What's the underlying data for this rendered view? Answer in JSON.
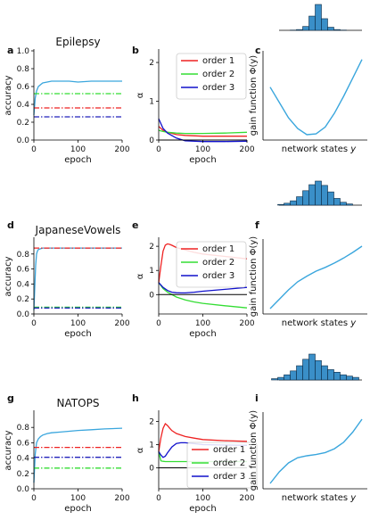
{
  "chart_data": [
    {
      "type": "line",
      "panel": "a",
      "title": "Epilepsy",
      "xlabel": "epoch",
      "ylabel": "accuracy",
      "xlim": [
        0,
        200
      ],
      "ylim": [
        0,
        1.0
      ],
      "xticks": [
        "0",
        "100",
        "200"
      ],
      "yticks": [
        "0.0",
        "0.2",
        "0.4",
        "0.6",
        "0.8",
        "1.0"
      ],
      "series": [
        {
          "color": "#3aa6dd",
          "style": "solid",
          "x": [
            0,
            3,
            6,
            10,
            15,
            20,
            30,
            40,
            60,
            80,
            100,
            130,
            160,
            200
          ],
          "values": [
            0.28,
            0.47,
            0.55,
            0.6,
            0.62,
            0.64,
            0.65,
            0.66,
            0.66,
            0.66,
            0.65,
            0.66,
            0.66,
            0.66
          ]
        },
        {
          "color": "#33dd33",
          "style": "dashdot",
          "x": [
            0,
            200
          ],
          "values": [
            0.52,
            0.52
          ]
        },
        {
          "color": "#ee2222",
          "style": "dashdot",
          "x": [
            0,
            200
          ],
          "values": [
            0.36,
            0.36
          ]
        },
        {
          "color": "#2222bb",
          "style": "dashdot",
          "x": [
            0,
            200
          ],
          "values": [
            0.26,
            0.26
          ]
        }
      ]
    },
    {
      "type": "line",
      "panel": "b",
      "title": "",
      "xlabel": "epoch",
      "ylabel": "α",
      "xlim": [
        0,
        200
      ],
      "ylim": [
        0,
        2.3
      ],
      "xticks": [
        "0",
        "100",
        "200"
      ],
      "yticks": [
        "0",
        "1",
        "2"
      ],
      "legend_position": "top-right",
      "series": [
        {
          "name": "order 1",
          "color": "#ee2222",
          "x": [
            0,
            10,
            20,
            40,
            60,
            100,
            150,
            200
          ],
          "values": [
            0.35,
            0.25,
            0.2,
            0.14,
            0.12,
            0.1,
            0.1,
            0.1
          ]
        },
        {
          "name": "order 2",
          "color": "#33dd33",
          "x": [
            0,
            10,
            20,
            40,
            60,
            100,
            150,
            200
          ],
          "values": [
            0.25,
            0.22,
            0.2,
            0.18,
            0.17,
            0.17,
            0.18,
            0.2
          ]
        },
        {
          "name": "order 3",
          "color": "#1111cc",
          "x": [
            0,
            10,
            20,
            40,
            60,
            100,
            150,
            200
          ],
          "values": [
            0.55,
            0.3,
            0.18,
            0.05,
            -0.02,
            -0.04,
            -0.04,
            -0.03
          ]
        },
        {
          "color": "#000000",
          "x": [
            0,
            200
          ],
          "values": [
            0,
            0
          ]
        }
      ]
    },
    {
      "type": "line",
      "panel": "c",
      "title": "",
      "xlabel": "network states y",
      "ylabel": "gain function Φ(y)",
      "series": [
        {
          "color": "#3aa6dd",
          "x": [
            0,
            0.1,
            0.2,
            0.3,
            0.4,
            0.5,
            0.6,
            0.7,
            0.8,
            0.9,
            1.0
          ],
          "values": [
            0.62,
            0.42,
            0.22,
            0.08,
            0.0,
            0.01,
            0.1,
            0.28,
            0.5,
            0.74,
            0.98
          ]
        }
      ],
      "histogram": [
        0.0,
        0.0,
        0.01,
        0.03,
        0.15,
        0.55,
        1.0,
        0.45,
        0.12,
        0.03,
        0.01,
        0.0
      ]
    },
    {
      "type": "line",
      "panel": "d",
      "title": "JapaneseVowels",
      "xlabel": "epoch",
      "ylabel": "accuracy",
      "xlim": [
        0,
        200
      ],
      "ylim": [
        0,
        1.0
      ],
      "xticks": [
        "0",
        "100",
        "200"
      ],
      "yticks": [
        "0.0",
        "0.2",
        "0.4",
        "0.6",
        "0.8"
      ],
      "series": [
        {
          "color": "#3aa6dd",
          "style": "solid",
          "x": [
            0,
            2,
            4,
            6,
            8,
            10,
            15,
            20,
            30,
            40,
            60,
            100,
            150,
            200
          ],
          "values": [
            0.05,
            0.35,
            0.65,
            0.8,
            0.84,
            0.86,
            0.87,
            0.88,
            0.88,
            0.88,
            0.88,
            0.88,
            0.88,
            0.88
          ]
        },
        {
          "color": "#ee2222",
          "style": "dashdot",
          "x": [
            0,
            200
          ],
          "values": [
            0.88,
            0.88
          ]
        },
        {
          "color": "#33dd33",
          "style": "dashdot",
          "x": [
            0,
            200
          ],
          "values": [
            0.09,
            0.09
          ]
        },
        {
          "color": "#2222bb",
          "style": "dashdot",
          "x": [
            0,
            200
          ],
          "values": [
            0.08,
            0.08
          ]
        }
      ]
    },
    {
      "type": "line",
      "panel": "e",
      "title": "",
      "xlabel": "epoch",
      "ylabel": "α",
      "xlim": [
        0,
        200
      ],
      "ylim": [
        -0.8,
        2.3
      ],
      "xticks": [
        "0",
        "100",
        "200"
      ],
      "yticks": [
        "0",
        "1",
        "2"
      ],
      "legend_position": "top-right",
      "series": [
        {
          "name": "order 1",
          "color": "#ee2222",
          "x": [
            0,
            5,
            10,
            15,
            20,
            25,
            30,
            40,
            60,
            80,
            100,
            150,
            200
          ],
          "values": [
            0.5,
            1.2,
            1.8,
            2.05,
            2.1,
            2.08,
            2.04,
            1.95,
            1.85,
            1.75,
            1.68,
            1.58,
            1.48
          ]
        },
        {
          "name": "order 2",
          "color": "#33dd33",
          "x": [
            0,
            10,
            20,
            40,
            60,
            80,
            100,
            150,
            200
          ],
          "values": [
            0.5,
            0.25,
            0.1,
            -0.1,
            -0.22,
            -0.3,
            -0.36,
            -0.46,
            -0.55
          ]
        },
        {
          "name": "order 3",
          "color": "#1111cc",
          "x": [
            0,
            10,
            20,
            30,
            40,
            50,
            60,
            80,
            100,
            150,
            200
          ],
          "values": [
            0.5,
            0.3,
            0.17,
            0.1,
            0.08,
            0.07,
            0.07,
            0.1,
            0.14,
            0.22,
            0.3
          ]
        },
        {
          "color": "#000000",
          "x": [
            0,
            200
          ],
          "values": [
            0,
            0
          ]
        }
      ]
    },
    {
      "type": "line",
      "panel": "f",
      "title": "",
      "xlabel": "network states y",
      "ylabel": "gain function Φ(y)",
      "series": [
        {
          "color": "#3aa6dd",
          "x": [
            0,
            0.1,
            0.2,
            0.3,
            0.4,
            0.5,
            0.6,
            0.7,
            0.8,
            0.9,
            1.0
          ],
          "values": [
            0.0,
            0.15,
            0.3,
            0.43,
            0.52,
            0.6,
            0.66,
            0.73,
            0.81,
            0.9,
            1.0
          ]
        }
      ],
      "histogram": [
        0.03,
        0.08,
        0.18,
        0.35,
        0.6,
        0.85,
        1.0,
        0.82,
        0.55,
        0.28,
        0.12,
        0.05
      ]
    },
    {
      "type": "line",
      "panel": "g",
      "title": "NATOPS",
      "xlabel": "epoch",
      "ylabel": "accuracy",
      "xlim": [
        0,
        200
      ],
      "ylim": [
        0,
        1.0
      ],
      "xticks": [
        "0",
        "100",
        "200"
      ],
      "yticks": [
        "0.0",
        "0.2",
        "0.4",
        "0.6",
        "0.8"
      ],
      "series": [
        {
          "color": "#3aa6dd",
          "style": "solid",
          "x": [
            0,
            3,
            6,
            10,
            15,
            20,
            30,
            40,
            60,
            80,
            100,
            130,
            160,
            200
          ],
          "values": [
            0.08,
            0.45,
            0.6,
            0.65,
            0.68,
            0.7,
            0.72,
            0.73,
            0.74,
            0.75,
            0.76,
            0.77,
            0.78,
            0.79
          ]
        },
        {
          "color": "#ee2222",
          "style": "dashdot",
          "x": [
            0,
            200
          ],
          "values": [
            0.54,
            0.54
          ]
        },
        {
          "color": "#2222bb",
          "style": "dashdot",
          "x": [
            0,
            200
          ],
          "values": [
            0.41,
            0.41
          ]
        },
        {
          "color": "#33dd33",
          "style": "dashdot",
          "x": [
            0,
            200
          ],
          "values": [
            0.27,
            0.27
          ]
        }
      ]
    },
    {
      "type": "line",
      "panel": "h",
      "title": "",
      "xlabel": "epoch",
      "ylabel": "α",
      "xlim": [
        0,
        200
      ],
      "ylim": [
        -0.9,
        2.4
      ],
      "xticks": [
        "0",
        "100",
        "200"
      ],
      "yticks": [
        "0",
        "1",
        "2"
      ],
      "legend_position": "lower-right",
      "series": [
        {
          "name": "order 1",
          "color": "#ee2222",
          "x": [
            0,
            5,
            10,
            15,
            20,
            25,
            30,
            40,
            60,
            80,
            100,
            150,
            200
          ],
          "values": [
            0.7,
            1.3,
            1.7,
            1.9,
            1.82,
            1.7,
            1.6,
            1.48,
            1.35,
            1.28,
            1.22,
            1.17,
            1.14
          ]
        },
        {
          "name": "order 2",
          "color": "#33dd33",
          "x": [
            0,
            5,
            10,
            15,
            200
          ],
          "values": [
            0.7,
            0.3,
            0.28,
            0.27,
            0.27
          ]
        },
        {
          "name": "order 3",
          "color": "#1111cc",
          "x": [
            0,
            5,
            10,
            15,
            20,
            30,
            40,
            50,
            60,
            80,
            100,
            150,
            200
          ],
          "values": [
            0.7,
            0.55,
            0.45,
            0.5,
            0.65,
            0.9,
            1.05,
            1.08,
            1.08,
            1.04,
            1.0,
            0.98,
            0.97
          ]
        },
        {
          "color": "#000000",
          "x": [
            0,
            200
          ],
          "values": [
            0,
            0
          ]
        }
      ]
    },
    {
      "type": "line",
      "panel": "i",
      "title": "",
      "xlabel": "network states y",
      "ylabel": "gain function Φ(y)",
      "series": [
        {
          "color": "#3aa6dd",
          "x": [
            0,
            0.1,
            0.2,
            0.3,
            0.4,
            0.5,
            0.6,
            0.7,
            0.8,
            0.9,
            1.0
          ],
          "values": [
            0.0,
            0.18,
            0.32,
            0.4,
            0.43,
            0.45,
            0.48,
            0.54,
            0.64,
            0.8,
            1.0
          ]
        }
      ],
      "histogram": [
        0.05,
        0.1,
        0.2,
        0.35,
        0.55,
        0.8,
        1.0,
        0.75,
        0.55,
        0.4,
        0.3,
        0.2,
        0.15,
        0.1
      ]
    }
  ],
  "network_states_italic": "y"
}
